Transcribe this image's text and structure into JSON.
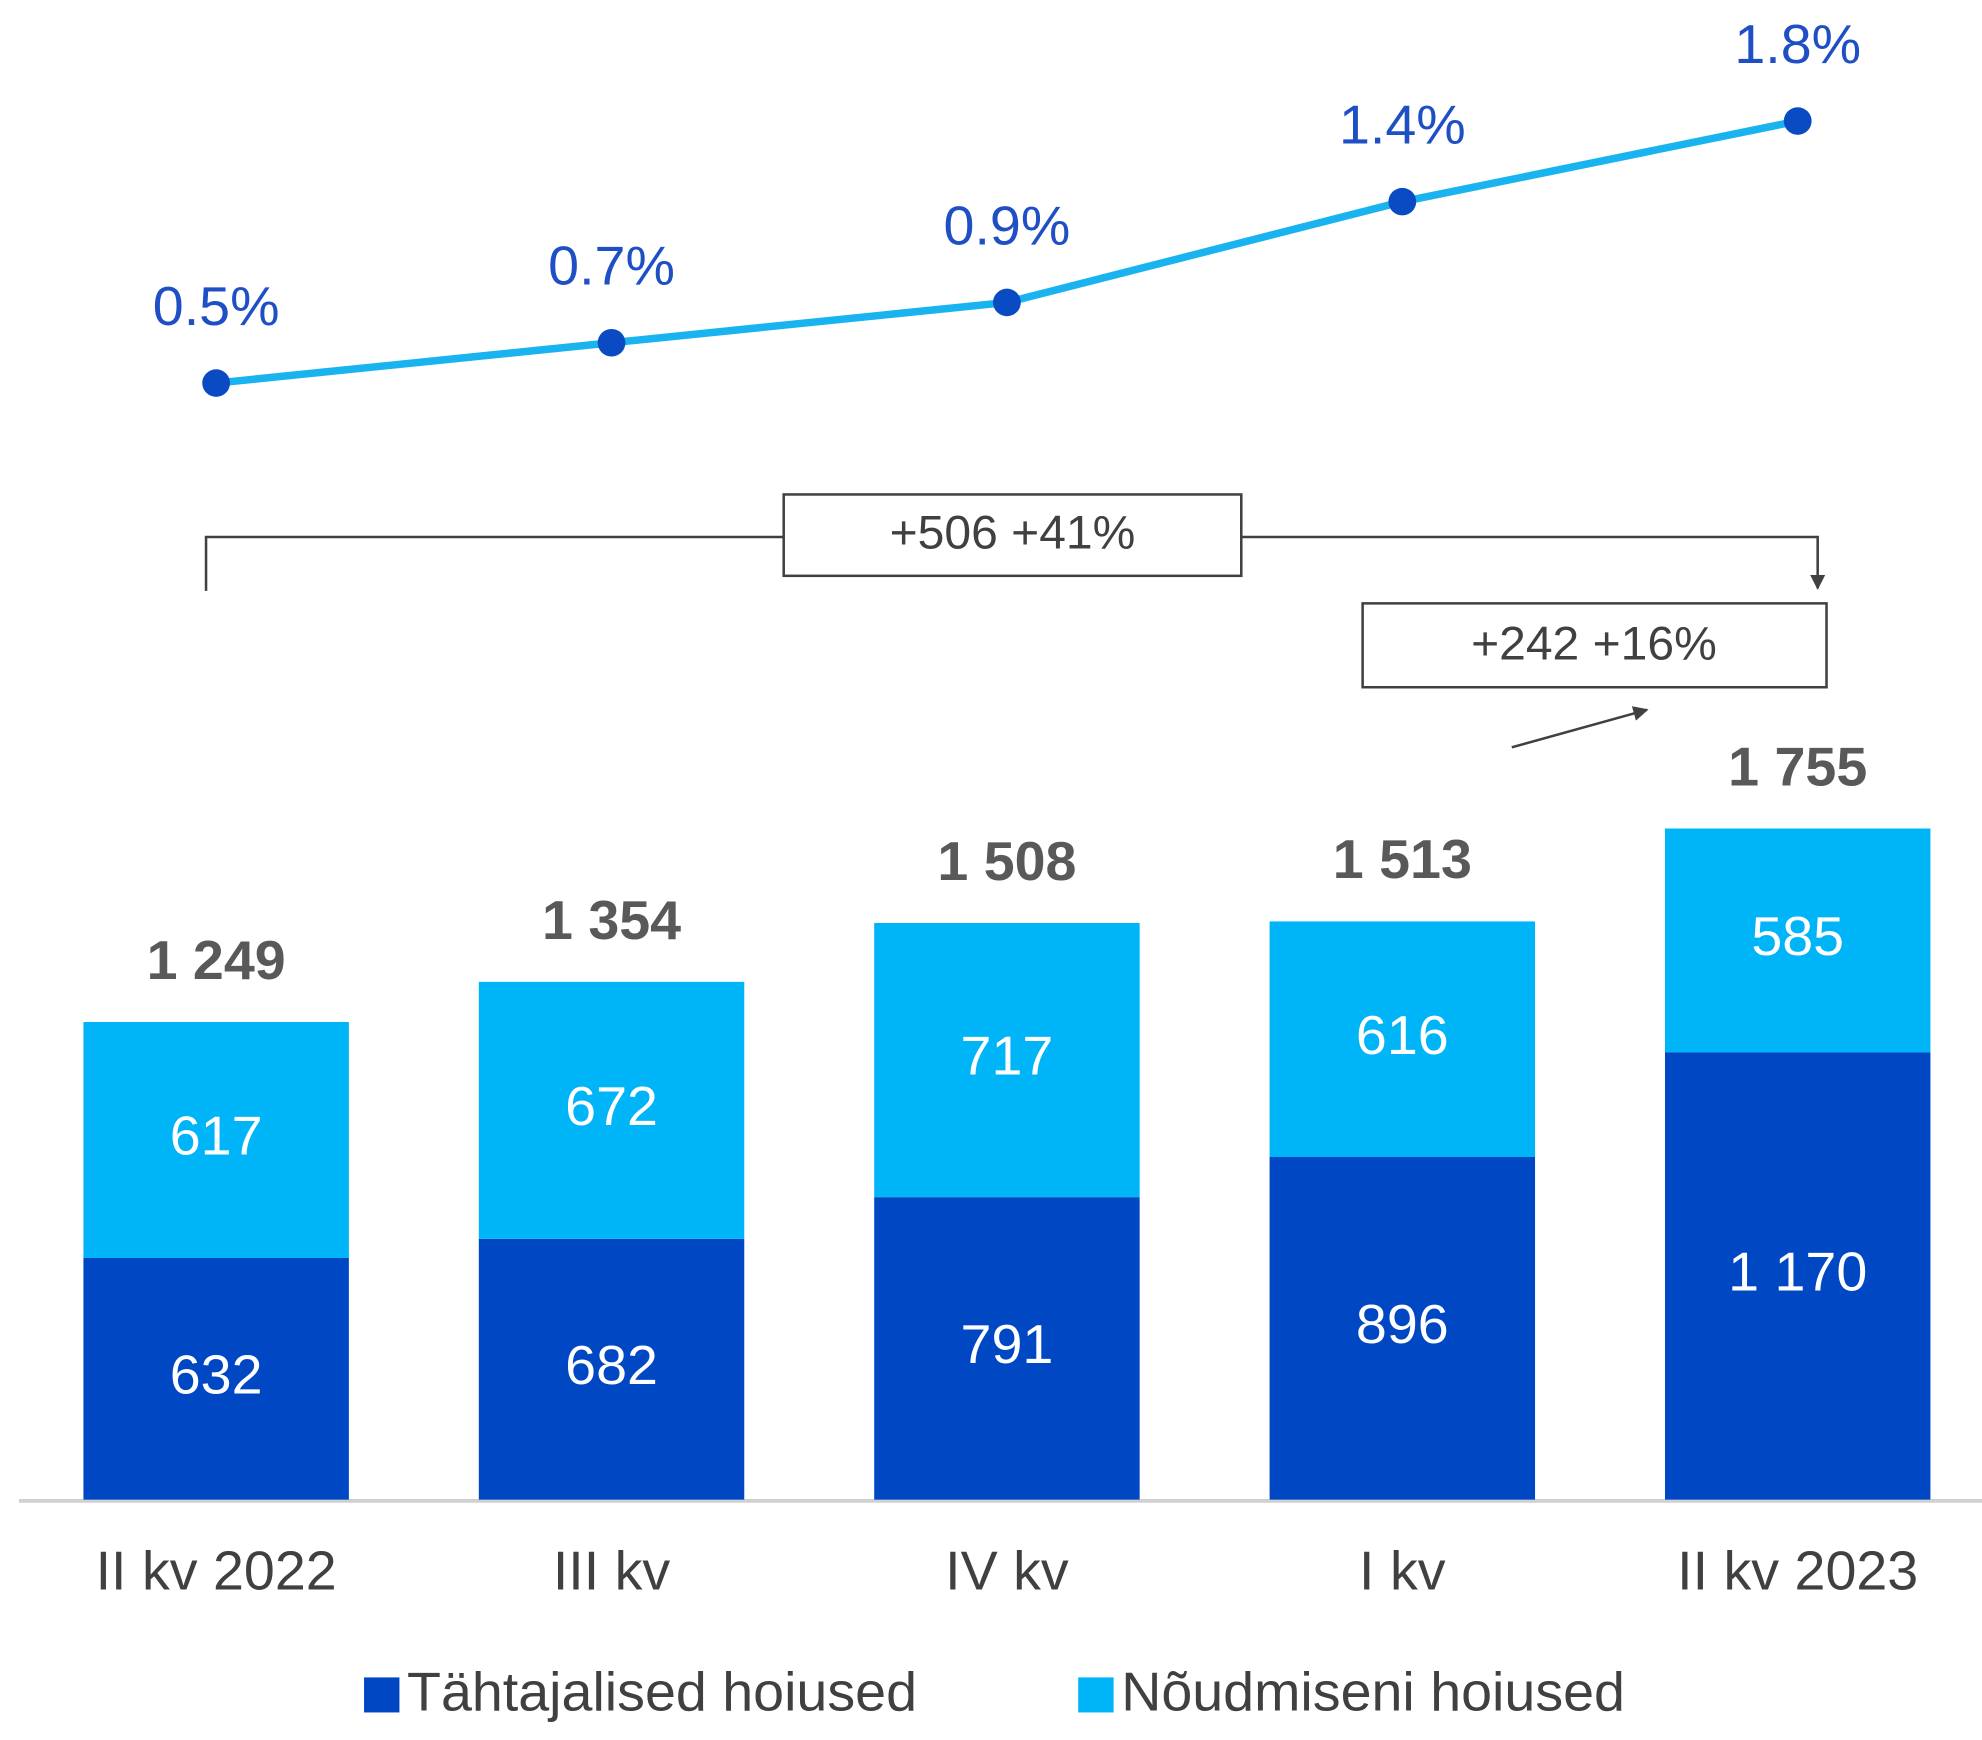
{
  "chart_data": {
    "type": "bar",
    "stacked": true,
    "categories": [
      "II kv 2022",
      "III kv",
      "IV kv",
      "I kv",
      "II kv 2023"
    ],
    "series": [
      {
        "name": "Tähtajalised hoiused",
        "color": "#0047c4",
        "values": [
          632,
          682,
          791,
          896,
          1170
        ],
        "value_labels": [
          "632",
          "682",
          "791",
          "896",
          "1 170"
        ]
      },
      {
        "name": "Nõudmiseni hoiused",
        "color": "#00b4f8",
        "values": [
          617,
          672,
          717,
          616,
          585
        ],
        "value_labels": [
          "617",
          "672",
          "717",
          "616",
          "585"
        ]
      }
    ],
    "totals": [
      1249,
      1354,
      1508,
      1513,
      1755
    ],
    "total_labels": [
      "1 249",
      "1 354",
      "1 508",
      "1 513",
      "1 755"
    ],
    "line": {
      "type": "line",
      "color": "#19b4f0",
      "marker_color": "#0a4bc4",
      "values": [
        0.5,
        0.7,
        0.9,
        1.4,
        1.8
      ],
      "value_labels": [
        "0.5%",
        "0.7%",
        "0.9%",
        "1.4%",
        "1.8%"
      ]
    },
    "annotations": [
      "+506 +41%",
      "+242 +16%"
    ],
    "legend": "bottom"
  }
}
